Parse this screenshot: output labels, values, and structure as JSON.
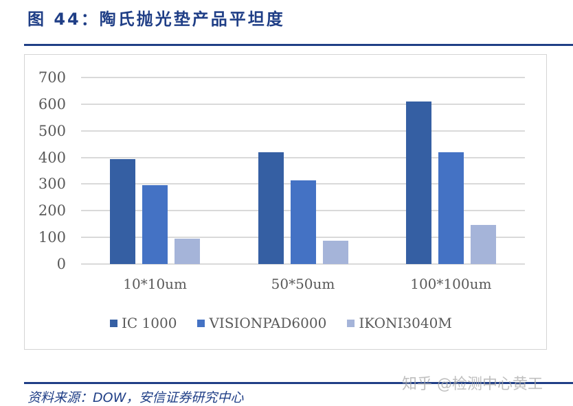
{
  "figure": {
    "title": "图 44：陶氏抛光垫产品平坦度",
    "source": "资料来源：DOW，安信证券研究中心",
    "watermark": "知乎 @检测中心黄工",
    "colors": {
      "title": "#1f3e86",
      "rule": "#1f3e86",
      "grid": "#d9d9d9",
      "axis_text": "#595959"
    }
  },
  "chart_data": {
    "type": "bar",
    "title": "陶氏抛光垫产品平坦度",
    "xlabel": "",
    "ylabel": "",
    "categories": [
      "10*10um",
      "50*50um",
      "100*100um"
    ],
    "series": [
      {
        "name": "IC 1000",
        "color": "#355fa3",
        "values": [
          395,
          420,
          610
        ]
      },
      {
        "name": "VISIONPAD6000",
        "color": "#4472c4",
        "values": [
          297,
          315,
          420
        ]
      },
      {
        "name": "IKONI3040M",
        "color": "#a5b4d9",
        "values": [
          95,
          88,
          147
        ]
      }
    ],
    "ylim": [
      0,
      700
    ],
    "yticks": [
      "0",
      "100",
      "200",
      "300",
      "400",
      "500",
      "600",
      "700"
    ],
    "grid": true,
    "legend_position": "bottom"
  }
}
